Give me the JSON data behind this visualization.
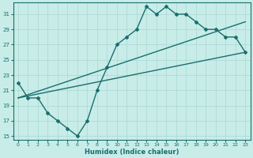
{
  "xlabel": "Humidex (Indice chaleur)",
  "bg_color": "#c8ece8",
  "line_color": "#1a6e6e",
  "grid_color": "#a8d8d4",
  "xlim": [
    -0.5,
    23.5
  ],
  "ylim": [
    14.5,
    32.5
  ],
  "yticks": [
    15,
    17,
    19,
    21,
    23,
    25,
    27,
    29,
    31
  ],
  "xticks": [
    0,
    1,
    2,
    3,
    4,
    5,
    6,
    7,
    8,
    9,
    10,
    11,
    12,
    13,
    14,
    15,
    16,
    17,
    18,
    19,
    20,
    21,
    22,
    23
  ],
  "curve1_x": [
    0,
    1,
    2,
    3,
    4,
    5,
    6,
    7,
    8,
    9,
    10,
    11,
    12,
    13,
    14,
    15,
    16,
    17,
    18,
    19,
    20,
    21,
    22,
    23
  ],
  "curve1_y": [
    22,
    20,
    20,
    18,
    17,
    16,
    15,
    17,
    21,
    24,
    27,
    28,
    29,
    32,
    31,
    32,
    31,
    31,
    30,
    29,
    29,
    28,
    28,
    26
  ],
  "curve2_x": [
    0,
    23
  ],
  "curve2_y": [
    20,
    26
  ],
  "curve3_x": [
    0,
    23
  ],
  "curve3_y": [
    20,
    30
  ],
  "lw": 1.0,
  "marker": "D",
  "ms": 2.0
}
